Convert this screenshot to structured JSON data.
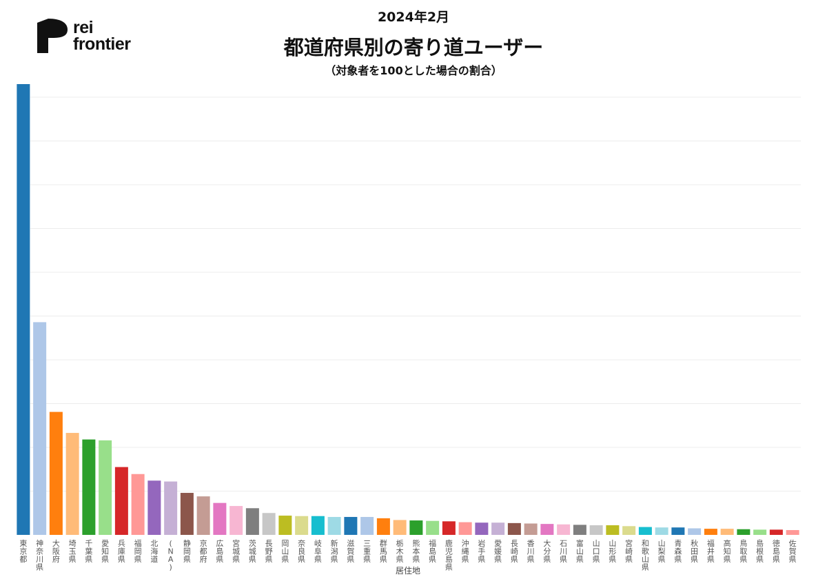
{
  "logo": {
    "text": "rei\nfrontier"
  },
  "header": {
    "date": "2024年2月",
    "title": "都道府県別の寄り道ユーザー",
    "subtitle": "（対象者を100とした場合の割合）"
  },
  "chart_data": {
    "type": "bar",
    "xlabel": "居住地",
    "ylabel": "",
    "grid": true,
    "ylim": [
      0,
      10.3
    ],
    "categories": [
      "東京都",
      "神奈川県",
      "大阪府",
      "埼玉県",
      "千葉県",
      "愛知県",
      "兵庫県",
      "福岡県",
      "北海道",
      "(NA)",
      "静岡県",
      "京都府",
      "広島県",
      "宮城県",
      "茨城県",
      "長野県",
      "岡山県",
      "奈良県",
      "岐阜県",
      "新潟県",
      "滋賀県",
      "三重県",
      "群馬県",
      "栃木県",
      "熊本県",
      "福島県",
      "鹿児島県",
      "沖縄県",
      "岩手県",
      "愛媛県",
      "長崎県",
      "香川県",
      "大分県",
      "石川県",
      "富山県",
      "山口県",
      "山形県",
      "宮崎県",
      "和歌山県",
      "山梨県",
      "青森県",
      "秋田県",
      "福井県",
      "高知県",
      "鳥取県",
      "島根県",
      "徳島県",
      "佐賀県"
    ],
    "values": [
      10.3,
      4.86,
      2.81,
      2.33,
      2.18,
      2.16,
      1.55,
      1.39,
      1.24,
      1.22,
      0.96,
      0.88,
      0.73,
      0.66,
      0.61,
      0.5,
      0.44,
      0.43,
      0.43,
      0.41,
      0.41,
      0.41,
      0.38,
      0.34,
      0.33,
      0.32,
      0.31,
      0.29,
      0.28,
      0.28,
      0.27,
      0.26,
      0.25,
      0.24,
      0.23,
      0.22,
      0.22,
      0.2,
      0.18,
      0.17,
      0.17,
      0.15,
      0.14,
      0.14,
      0.13,
      0.12,
      0.12,
      0.11
    ],
    "colors": [
      "#1f77b4",
      "#aec7e8",
      "#ff7f0e",
      "#ffbb78",
      "#2ca02c",
      "#98df8a",
      "#d62728",
      "#ff9896",
      "#9467bd",
      "#c5b0d5",
      "#8c564b",
      "#c49c94",
      "#e377c2",
      "#f7b6d2",
      "#7f7f7f",
      "#c7c7c7",
      "#bcbd22",
      "#dbdb8d",
      "#17becf",
      "#9edae5"
    ]
  }
}
